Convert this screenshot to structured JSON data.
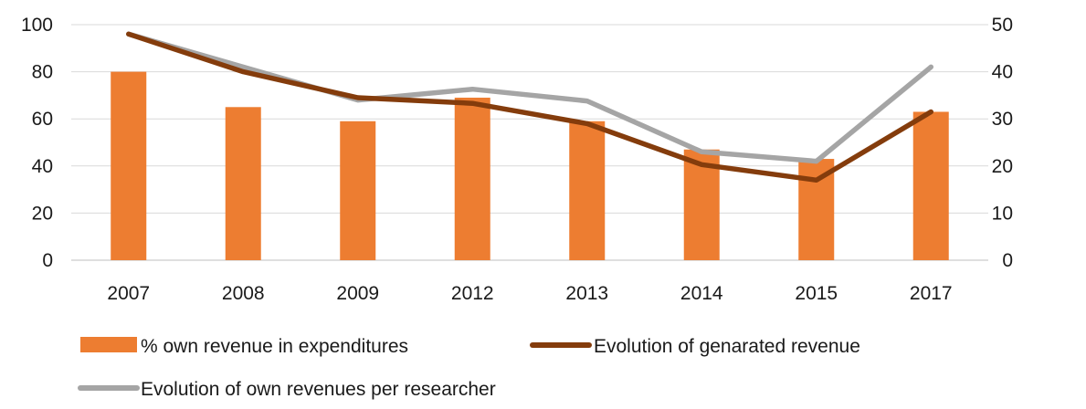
{
  "chart_data": {
    "type": "bar+line",
    "categories": [
      "2007",
      "2008",
      "2009",
      "2012",
      "2013",
      "2014",
      "2015",
      "2017"
    ],
    "series": [
      {
        "name": "% own revenue in expenditures",
        "kind": "bar",
        "axis": "left",
        "color": "#ED7D31",
        "values": [
          80,
          65,
          59,
          69,
          59,
          47,
          43,
          63
        ]
      },
      {
        "name": "Evolution of genarated revenue",
        "kind": "line",
        "axis": "right",
        "color": "#843C0C",
        "values": [
          48,
          40,
          34.5,
          33.3,
          29,
          20.3,
          17,
          31.5
        ]
      },
      {
        "name": "Evolution of own revenues per researcher",
        "kind": "line",
        "axis": "right",
        "color": "#A5A5A5",
        "values": [
          48,
          41,
          34,
          36.3,
          33.8,
          23,
          21,
          41
        ]
      }
    ],
    "y_left": {
      "range": [
        0,
        100
      ],
      "ticks": [
        "0",
        "20",
        "40",
        "60",
        "80",
        "100"
      ]
    },
    "y_right": {
      "range": [
        0,
        50
      ],
      "ticks": [
        "0",
        "10",
        "20",
        "30",
        "40",
        "50"
      ]
    },
    "grid": true,
    "legend_position": "bottom"
  }
}
